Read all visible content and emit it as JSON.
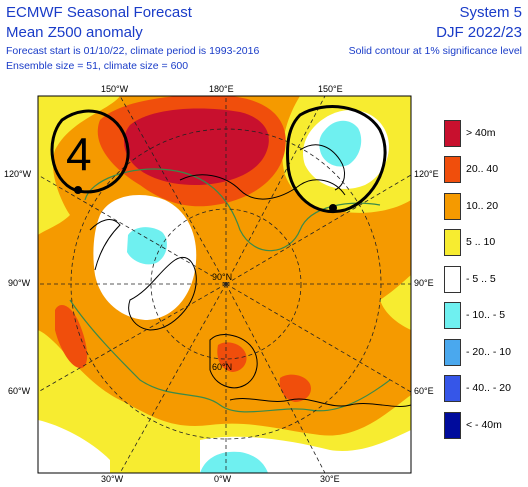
{
  "header": {
    "title": "ECMWF Seasonal Forecast",
    "subtitle": "Mean Z500 anomaly",
    "line1": "Forecast start is 01/10/22, climate period is 1993-2016",
    "line2": "Ensemble size = 51, climate size = 600",
    "system": "System 5",
    "season": "DJF 2022/23",
    "note": "Solid contour at 1% significance level"
  },
  "map": {
    "projection": "north-polar-stereographic",
    "lon_labels": {
      "top_150w": "150°W",
      "top_180": "180°E",
      "top_150e": "150°E",
      "bottom_30w": "30°W",
      "bottom_0": "0°W",
      "bottom_30e": "30°E",
      "left_120w": "120°W",
      "left_90w": "90°W",
      "left_60w": "60°W",
      "right_120e": "120°E",
      "right_90e": "90°E",
      "right_60e": "60°E"
    },
    "lat_labels": {
      "lat_90n": "90°N",
      "lat_60n": "60°N"
    },
    "annotation": {
      "number": "4",
      "description": "hand-drawn circles around anomaly centres"
    }
  },
  "legend": {
    "items": [
      {
        "label": "> 40m",
        "color": "#c8102e"
      },
      {
        "label": "20.. 40",
        "color": "#f04e0c"
      },
      {
        "label": "10.. 20",
        "color": "#f59a00"
      },
      {
        "label": "5 .. 10",
        "color": "#f7ec30"
      },
      {
        "label": "- 5 .. 5",
        "color": "#ffffff"
      },
      {
        "label": "- 10.. - 5",
        "color": "#6ff0f0"
      },
      {
        "label": "- 20.. - 10",
        "color": "#4aa8ee"
      },
      {
        "label": "- 40.. - 20",
        "color": "#3656e8"
      },
      {
        "label": "< - 40m",
        "color": "#000b9c"
      }
    ]
  }
}
